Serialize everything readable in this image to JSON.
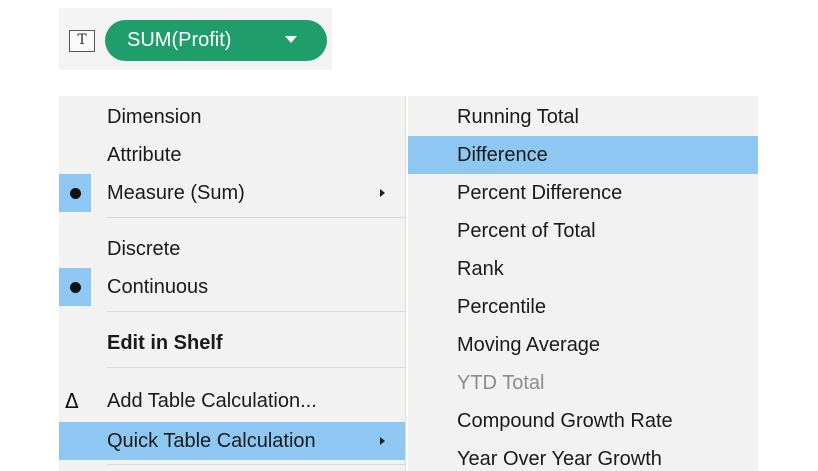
{
  "shelf": {
    "mark_type_icon_glyph": "T",
    "pill_label": "SUM(Profit)",
    "pill_color": "#1f9d6b"
  },
  "context_menu": {
    "items": [
      {
        "label": "Dimension"
      },
      {
        "label": "Attribute"
      },
      {
        "label": "Measure (Sum)",
        "checked": true,
        "submenu": true
      },
      {
        "label": "Discrete"
      },
      {
        "label": "Continuous",
        "checked": true
      },
      {
        "label": "Edit in Shelf",
        "bold": true
      },
      {
        "label": "Add Table Calculation...",
        "icon": "Δ"
      },
      {
        "label": "Quick Table Calculation",
        "submenu": true,
        "highlighted": true
      }
    ]
  },
  "quick_table_calc_submenu": {
    "items": [
      {
        "label": "Running Total"
      },
      {
        "label": "Difference",
        "highlighted": true
      },
      {
        "label": "Percent Difference"
      },
      {
        "label": "Percent of Total"
      },
      {
        "label": "Rank"
      },
      {
        "label": "Percentile"
      },
      {
        "label": "Moving Average"
      },
      {
        "label": "YTD Total",
        "disabled": true
      },
      {
        "label": "Compound Growth Rate"
      },
      {
        "label": "Year Over Year Growth"
      }
    ]
  },
  "colors": {
    "highlight": "#8ec8f2",
    "menu_background": "#f2f2f2",
    "disabled_text": "#8c8c8c"
  }
}
